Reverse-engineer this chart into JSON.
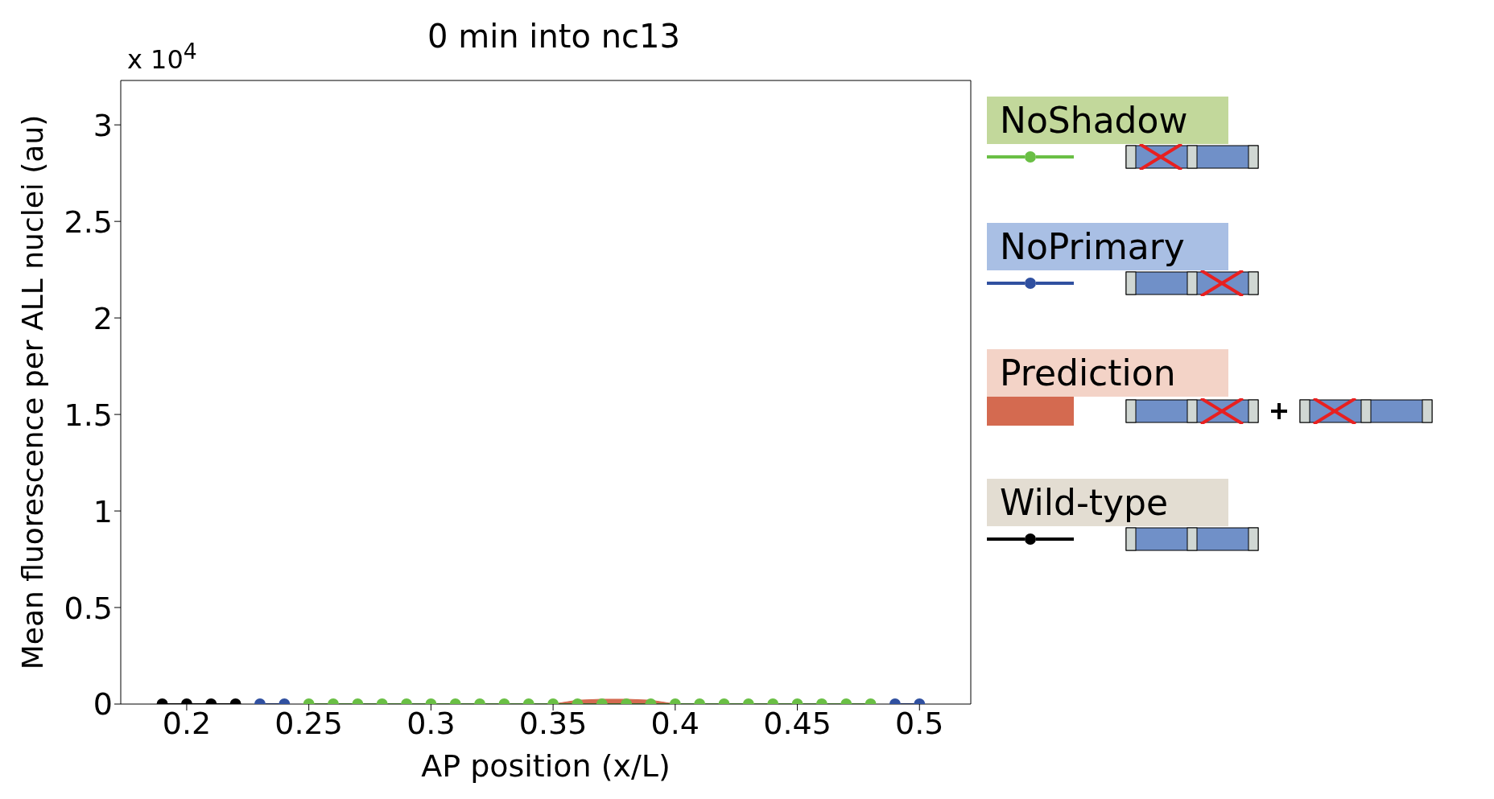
{
  "chart_data": {
    "type": "line",
    "title": "0 min into nc13",
    "xlabel": "AP position (x/L)",
    "ylabel": "Mean fluorescence per ALL nuclei (au)",
    "annotations": [
      "x 10$^{4}$"
    ],
    "xlim": [
      0.173,
      0.521
    ],
    "xticks": [
      0.2,
      0.25,
      0.3,
      0.35,
      0.4,
      0.45,
      0.5
    ],
    "ylim": [
      0,
      3.23
    ],
    "yticks": [
      0,
      0.5,
      1,
      1.5,
      2,
      2.5,
      3
    ],
    "legend": "right",
    "marker": "circle",
    "line_style": "solid",
    "series": [
      {
        "name": "NoShadow",
        "color": "#6abf45",
        "x": [
          0.25,
          0.26,
          0.27,
          0.28,
          0.29,
          0.3,
          0.31,
          0.32,
          0.33,
          0.34,
          0.35,
          0.36,
          0.37,
          0.38,
          0.39,
          0.4,
          0.41,
          0.42,
          0.43,
          0.44,
          0.45,
          0.46,
          0.47,
          0.48
        ],
        "values": [
          0,
          0,
          0,
          0,
          0,
          0,
          0,
          0,
          0,
          0,
          0,
          0,
          0,
          0,
          0,
          0,
          0,
          0,
          0,
          0,
          0,
          0,
          0,
          0
        ]
      },
      {
        "name": "NoPrimary",
        "color": "#3050a0",
        "x": [
          0.23,
          0.24,
          0.365,
          0.49,
          0.5
        ],
        "values": [
          0,
          0,
          null,
          0,
          0
        ]
      },
      {
        "name": "Prediction",
        "type": "area",
        "marker": "none",
        "color": "#d46a50",
        "x": [
          0.35,
          0.36,
          0.37,
          0.38,
          0.39,
          0.4
        ],
        "values": [
          0,
          0.02,
          0.025,
          0.025,
          0.02,
          0
        ]
      },
      {
        "name": "Wild-type",
        "color": "#000000",
        "x": [
          0.19,
          0.2,
          0.21,
          0.22
        ],
        "values": [
          0,
          0,
          0,
          0
        ]
      }
    ]
  }
}
